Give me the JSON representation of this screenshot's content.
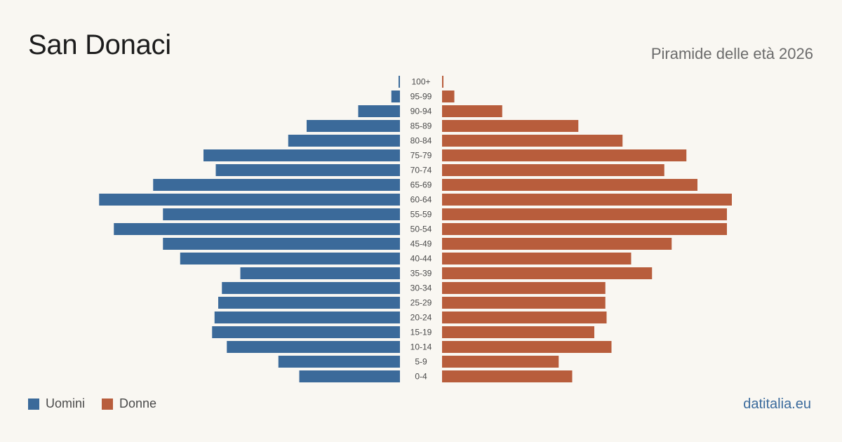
{
  "header": {
    "title": "San Donaci",
    "subtitle": "Piramide delle età 2026"
  },
  "legend": {
    "men_label": "Uomini",
    "women_label": "Donne"
  },
  "brand": "datitalia.eu",
  "colors": {
    "men": "#3b6a9a",
    "women": "#b85d3c",
    "background": "#f9f7f2"
  },
  "chart_data": {
    "type": "bar",
    "orientation": "horizontal-pyramid",
    "title": "San Donaci",
    "subtitle": "Piramide delle età 2026",
    "categories": [
      "100+",
      "95-99",
      "90-94",
      "85-89",
      "80-84",
      "75-79",
      "70-74",
      "65-69",
      "60-64",
      "55-59",
      "50-54",
      "45-49",
      "40-44",
      "35-39",
      "30-34",
      "25-29",
      "20-24",
      "15-19",
      "10-14",
      "5-9",
      "0-4"
    ],
    "series": [
      {
        "name": "Uomini",
        "values": [
          1,
          7,
          34,
          76,
          91,
          160,
          150,
          201,
          245,
          193,
          233,
          193,
          179,
          130,
          145,
          148,
          151,
          153,
          141,
          99,
          82
        ]
      },
      {
        "name": "Donne",
        "values": [
          1,
          10,
          49,
          111,
          147,
          199,
          181,
          208,
          236,
          232,
          232,
          187,
          154,
          171,
          133,
          133,
          134,
          124,
          138,
          95,
          106
        ]
      }
    ],
    "grid": false,
    "legend_position": "bottom-left"
  }
}
